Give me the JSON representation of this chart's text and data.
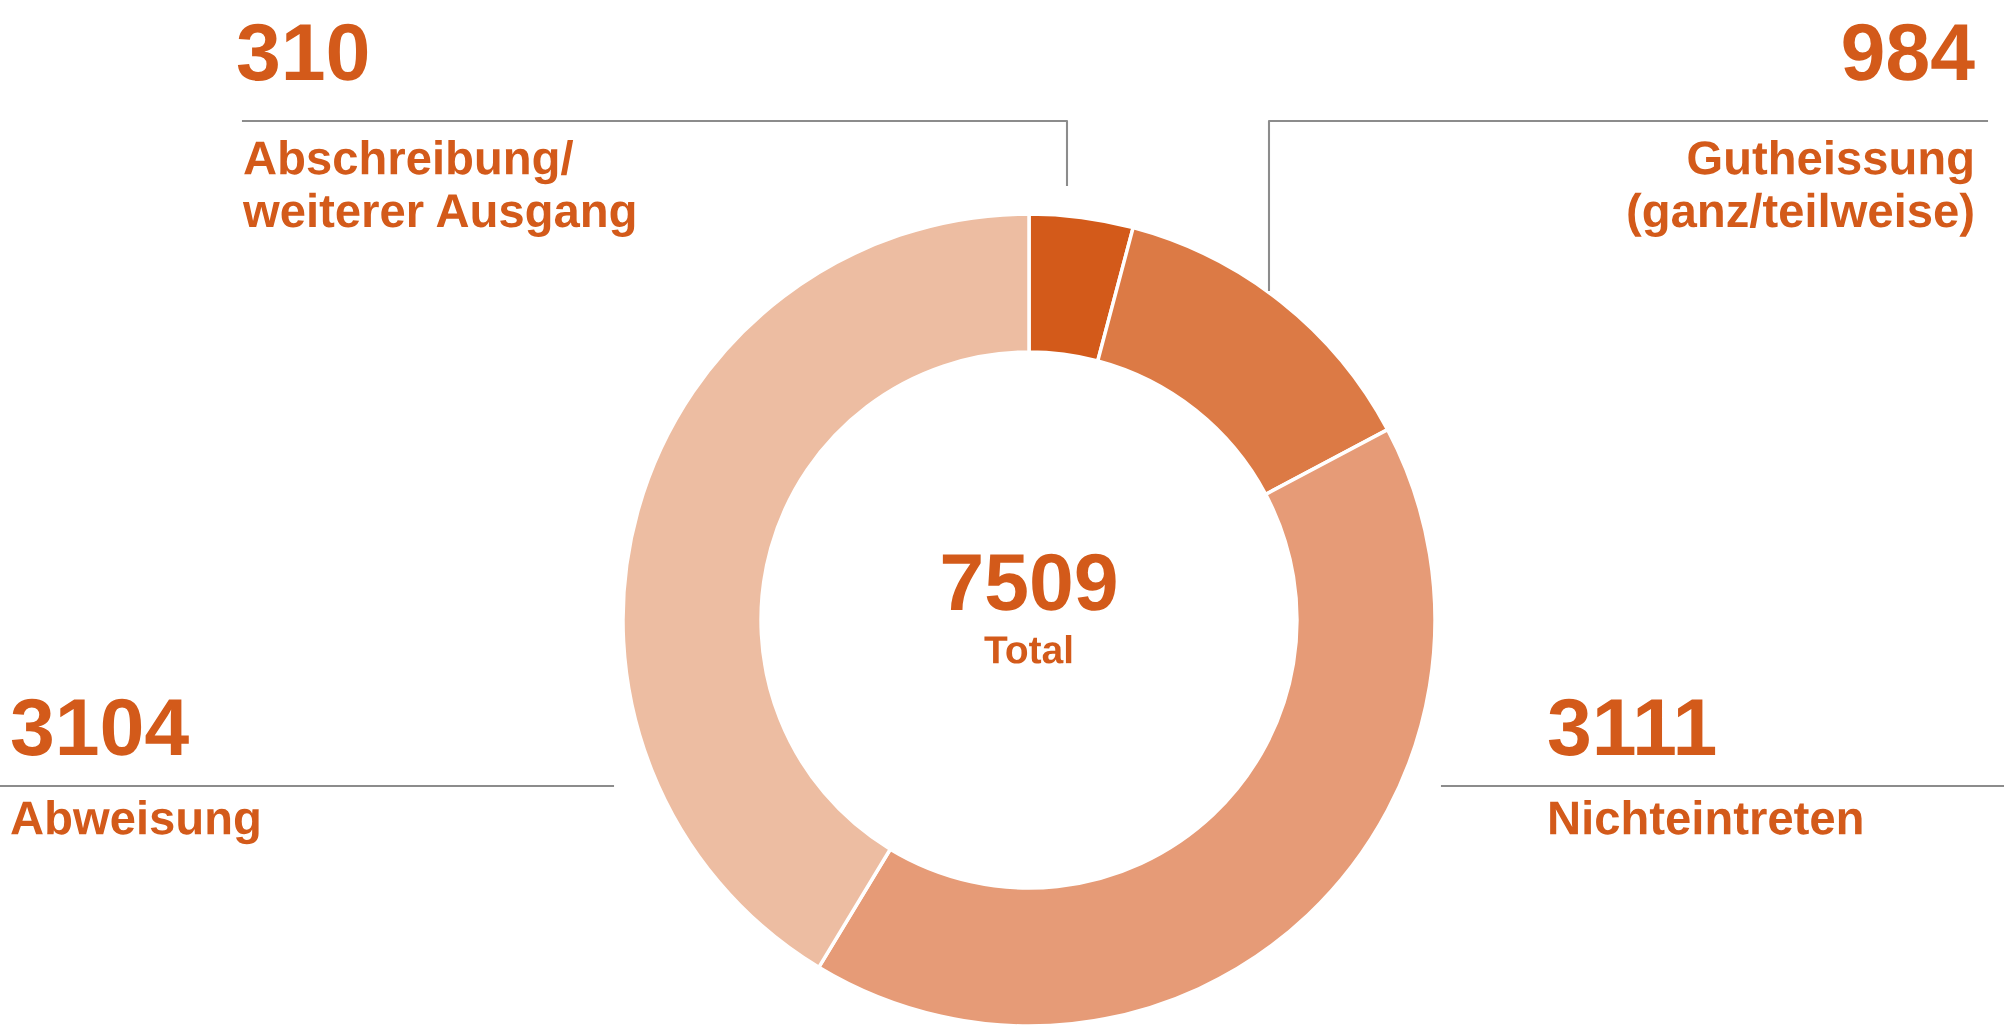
{
  "chart_data": {
    "type": "donut",
    "categories": [
      "Abschreibung/\nweiterer Ausgang",
      "Gutheissung\n(ganz/teilweise)",
      "Nichteintreten",
      "Abweisung"
    ],
    "values": [
      310,
      984,
      3111,
      3104
    ],
    "colors": [
      "#d35a1a",
      "#dc7a45",
      "#e69b77",
      "#edbda2"
    ],
    "data_labels": true,
    "annotations": [
      "7509",
      "Total"
    ]
  }
}
